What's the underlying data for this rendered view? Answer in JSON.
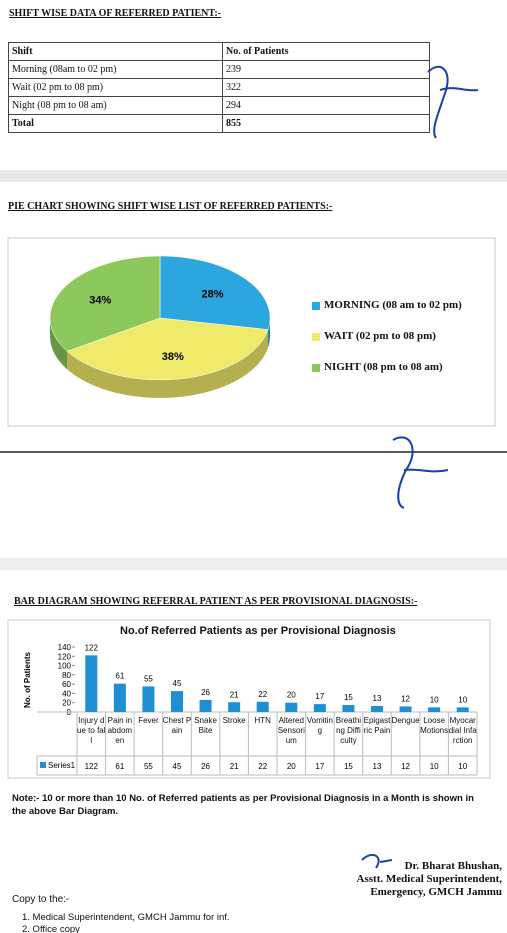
{
  "title": "SHIFT WISE DATA OF REFERRED PATIENT:-",
  "table": {
    "header": [
      "Shift",
      "No. of Patients"
    ],
    "rows": [
      [
        "Morning (08am to 02 pm)",
        239
      ],
      [
        "Wait (02 pm to 08 pm)",
        322
      ],
      [
        "Night (08 pm to 08 am)",
        294
      ],
      [
        "Total",
        855
      ]
    ]
  },
  "pie_chart": {
    "type": "pie",
    "title": "PIE CHART SHOWING SHIFT WISE LIST OF REFERRED PATIENTS:-",
    "categories": [
      "MORNING (08 am to 02 pm)",
      "WAIT (02 pm to 08 pm)",
      "NIGHT (08 pm to 08 am)"
    ],
    "values": [
      28,
      38,
      34
    ],
    "value_labels": [
      "28%",
      "38%",
      "34%"
    ],
    "colors": [
      "#2ba6de",
      "#f0ea6a",
      "#8cc85c"
    ],
    "legend": "right"
  },
  "bar_chart": {
    "type": "bar",
    "heading": "BAR DIAGRAM SHOWING REFERRAL PATIENT AS PER PROVISIONAL DIAGNOSIS:-",
    "title": "No.of Referred Patients as per Provisional Diagnosis",
    "y_label": "No. of Patients",
    "categories": [
      "Injury due to fall",
      "Pain in abdomen",
      "Fever",
      "Chest Pain",
      "Snake Bite",
      "Stroke",
      "HTN",
      "Altered Sensorium",
      "Vomiting",
      "Breathing Difficulty",
      "Epigastric Pain",
      "Dengue",
      "Loose Motions",
      "Myocardial Infarction"
    ],
    "series": [
      {
        "name": "Series1",
        "color": "#1f8fd3",
        "values": [
          122,
          61,
          55,
          45,
          26,
          21,
          22,
          20,
          17,
          15,
          13,
          12,
          10,
          10
        ]
      }
    ],
    "ylim": [
      0,
      140
    ],
    "yticks": [
      0,
      20,
      40,
      60,
      80,
      100,
      120,
      140
    ]
  },
  "note": "Note:- 10 or more than 10 No. of Referred patients as per Provisional Diagnosis in a Month is shown in the above Bar Diagram.",
  "signature": {
    "name": "Dr. Bharat Bhushan,",
    "designation": "Asstt. Medical Superintendent,",
    "office": "Emergency, GMCH Jammu"
  },
  "copy_to": {
    "heading": "Copy to the:-",
    "items": [
      "1. Medical Superintendent, GMCH Jammu for inf.",
      "2. Office copy"
    ]
  }
}
